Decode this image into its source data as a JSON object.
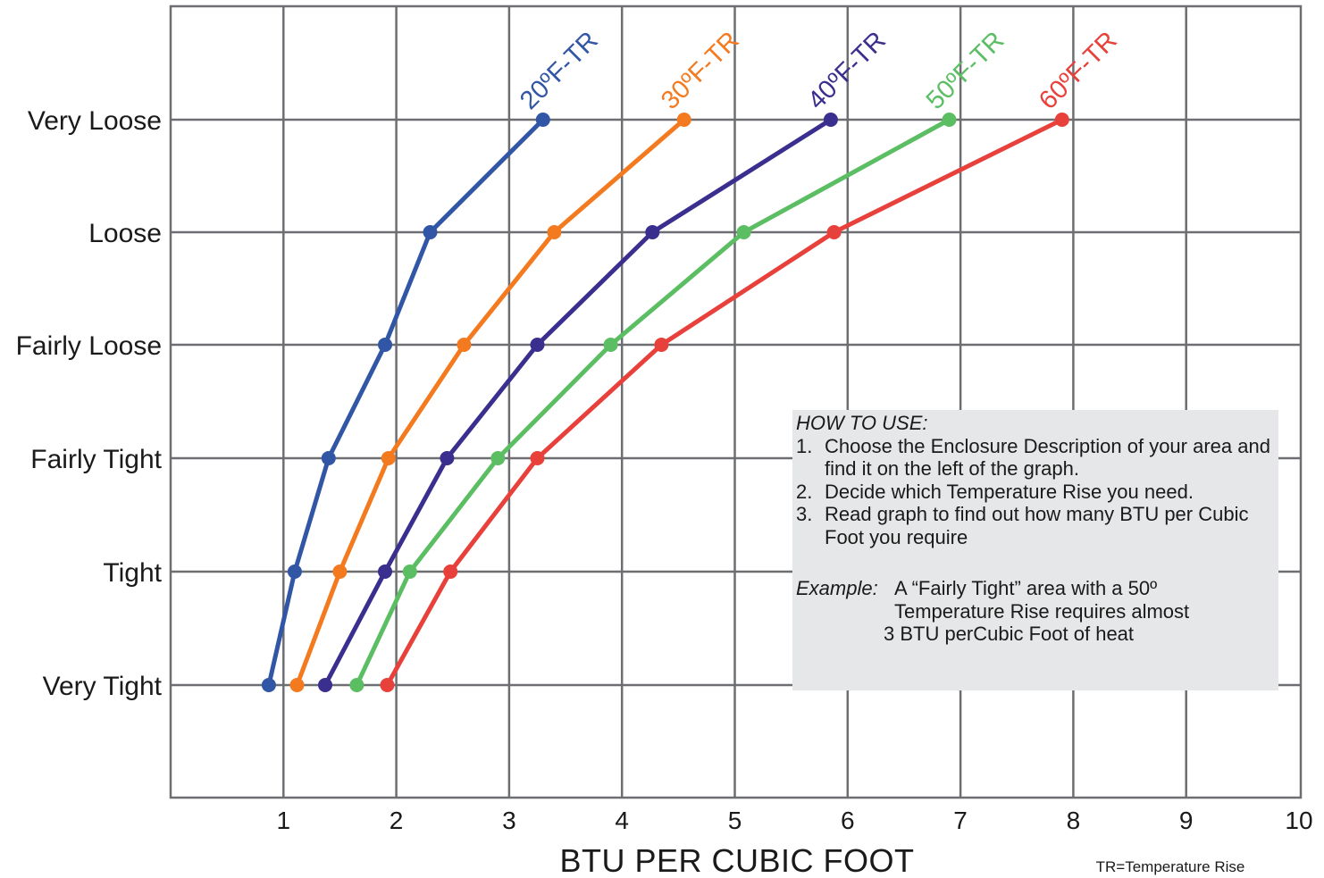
{
  "chart_data": {
    "type": "line",
    "xlabel": "BTU PER CUBIC FOOT",
    "xlim": [
      0,
      10
    ],
    "x_ticks": [
      1,
      2,
      3,
      4,
      5,
      6,
      7,
      8,
      9,
      10
    ],
    "categories": [
      "Very Loose",
      "Loose",
      "Fairly Loose",
      "Fairly Tight",
      "Tight",
      "Very Tight"
    ],
    "grid": true,
    "footnote": "TR=Temperature Rise",
    "series": [
      {
        "name": "20ºF-TR",
        "color": "#3256a6",
        "x": [
          3.3,
          2.3,
          1.9,
          1.4,
          1.1,
          0.87
        ]
      },
      {
        "name": "30ºF-TR",
        "color": "#f47a20",
        "x": [
          4.55,
          3.4,
          2.6,
          1.93,
          1.5,
          1.12
        ]
      },
      {
        "name": "40ºF-TR",
        "color": "#3a2e8f",
        "x": [
          5.85,
          4.27,
          3.25,
          2.45,
          1.9,
          1.37
        ]
      },
      {
        "name": "50ºF-TR",
        "color": "#5cbe63",
        "x": [
          6.9,
          5.08,
          3.9,
          2.9,
          2.12,
          1.65
        ]
      },
      {
        "name": "60ºF-TR",
        "color": "#e8403a",
        "x": [
          7.9,
          5.88,
          4.35,
          3.25,
          2.48,
          1.92
        ]
      }
    ]
  },
  "how_to_use": {
    "title": "HOW TO USE:",
    "steps": [
      {
        "num": "1.",
        "text": "Choose the Enclosure Description of your area and find it on the left of the graph."
      },
      {
        "num": "2.",
        "text": "Decide which Temperature Rise you need."
      },
      {
        "num": "3.",
        "text": "Read graph to find out how many BTU per Cubic Foot you require"
      }
    ],
    "example_label": "Example:",
    "example_line1": "A “Fairly Tight” area with a 50º",
    "example_line2": "Temperature Rise requires almost",
    "example_line3": "3 BTU perCubic Foot of heat"
  }
}
